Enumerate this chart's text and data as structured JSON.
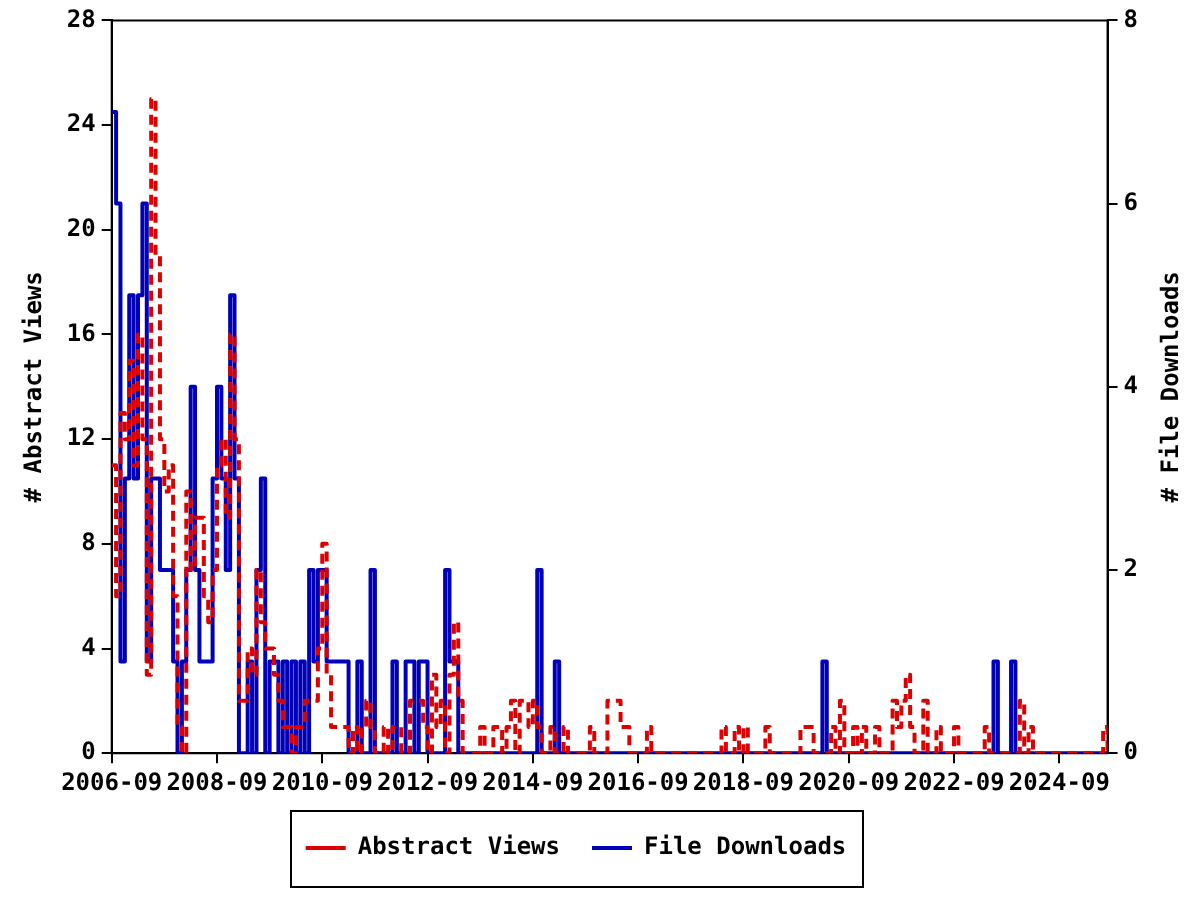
{
  "chart_data": {
    "type": "step",
    "ylabel": "# Abstract Views",
    "y2label": "# File Downloads",
    "xlim": [
      "2006-09",
      "2025-08"
    ],
    "xticks": [
      "2006-09",
      "2008-09",
      "2010-09",
      "2012-09",
      "2014-09",
      "2016-09",
      "2018-09",
      "2020-09",
      "2022-09",
      "2024-09"
    ],
    "ylim": [
      0,
      28
    ],
    "yticks": [
      0,
      4,
      8,
      12,
      16,
      20,
      24,
      28
    ],
    "y2lim": [
      0,
      8
    ],
    "y2ticks": [
      0,
      2,
      4,
      6,
      8
    ],
    "legend": "bottom",
    "series": [
      {
        "name": "Abstract Views",
        "color": "#dd0000",
        "line_style": "dashed",
        "x": [
          "2006-09",
          "2006-10",
          "2006-11",
          "2006-12",
          "2007-01",
          "2007-02",
          "2007-03",
          "2007-04",
          "2007-05",
          "2007-06",
          "2007-07",
          "2007-08",
          "2007-09",
          "2007-10",
          "2007-11",
          "2007-12",
          "2008-01",
          "2008-02",
          "2008-03",
          "2008-04",
          "2008-06",
          "2008-07",
          "2008-08",
          "2008-09",
          "2008-10",
          "2008-11",
          "2008-12",
          "2009-01",
          "2009-02",
          "2009-04",
          "2009-05",
          "2009-06",
          "2009-07",
          "2009-08",
          "2009-10",
          "2009-11",
          "2009-12",
          "2010-02",
          "2010-03",
          "2010-05",
          "2010-08",
          "2010-09",
          "2010-10",
          "2010-11",
          "2011-03",
          "2011-04",
          "2011-05",
          "2011-06",
          "2011-07",
          "2011-08",
          "2011-09",
          "2011-11",
          "2011-12",
          "2012-01",
          "2012-03",
          "2012-05",
          "2012-08",
          "2012-09",
          "2012-10",
          "2012-11",
          "2012-12",
          "2013-01",
          "2013-02",
          "2013-03",
          "2013-04",
          "2013-05",
          "2013-09",
          "2013-10",
          "2013-12",
          "2014-02",
          "2014-03",
          "2014-04",
          "2014-05",
          "2014-06",
          "2014-08",
          "2014-09",
          "2014-10",
          "2014-11",
          "2015-01",
          "2015-02",
          "2015-04",
          "2015-05",
          "2015-10",
          "2015-11",
          "2016-02",
          "2016-05",
          "2016-07",
          "2016-11",
          "2016-12",
          "2018-04",
          "2018-05",
          "2018-07",
          "2018-08",
          "2018-09",
          "2018-10",
          "2019-02",
          "2019-03",
          "2019-10",
          "2020-01",
          "2020-05",
          "2020-06",
          "2020-07",
          "2020-08",
          "2020-10",
          "2020-11",
          "2020-12",
          "2021-01",
          "2021-03",
          "2021-04",
          "2021-07",
          "2021-08",
          "2021-09",
          "2021-10",
          "2021-11",
          "2021-12",
          "2022-02",
          "2022-03",
          "2022-05",
          "2022-06",
          "2022-09",
          "2022-10",
          "2023-04",
          "2023-05",
          "2023-12",
          "2024-01",
          "2024-02",
          "2024-03",
          "2025-07",
          "2025-08"
        ],
        "values": [
          11,
          6,
          13,
          12,
          15,
          11,
          16,
          12,
          3,
          25,
          19,
          12,
          10,
          11,
          6,
          1,
          0,
          10,
          7,
          9,
          6,
          5,
          7,
          11,
          12,
          9,
          16,
          12,
          2,
          4,
          3,
          7,
          5,
          4,
          3,
          2,
          1,
          0,
          1,
          2,
          4,
          8,
          3,
          1,
          0,
          1,
          0,
          1,
          2,
          1,
          0,
          1,
          0,
          1,
          0,
          2,
          1,
          0,
          3,
          1,
          2,
          0,
          3,
          5,
          2,
          0,
          1,
          0,
          1,
          0,
          1,
          2,
          0,
          2,
          1,
          2,
          1,
          0,
          1,
          0,
          1,
          0,
          1,
          0,
          2,
          1,
          0,
          1,
          0,
          1,
          0,
          1,
          0,
          1,
          0,
          1,
          0,
          1,
          0,
          1,
          0,
          2,
          0,
          1,
          0,
          1,
          0,
          1,
          0,
          2,
          1,
          2,
          3,
          1,
          0,
          2,
          0,
          1,
          0,
          1,
          0,
          1,
          0,
          2,
          0,
          1,
          0,
          1,
          0
        ]
      },
      {
        "name": "File Downloads",
        "color": "#0000bb",
        "line_style": "solid",
        "axis": "y2",
        "x": [
          "2006-09",
          "2006-10",
          "2006-11",
          "2006-12",
          "2007-01",
          "2007-02",
          "2007-03",
          "2007-04",
          "2007-05",
          "2007-06",
          "2007-08",
          "2007-11",
          "2007-12",
          "2008-01",
          "2008-02",
          "2008-03",
          "2008-04",
          "2008-05",
          "2008-08",
          "2008-09",
          "2008-10",
          "2008-11",
          "2008-12",
          "2009-01",
          "2009-02",
          "2009-04",
          "2009-05",
          "2009-06",
          "2009-07",
          "2009-08",
          "2009-09",
          "2009-11",
          "2009-12",
          "2010-01",
          "2010-02",
          "2010-03",
          "2010-04",
          "2010-05",
          "2010-06",
          "2010-07",
          "2010-08",
          "2010-10",
          "2011-03",
          "2011-05",
          "2011-06",
          "2011-08",
          "2011-09",
          "2012-01",
          "2012-02",
          "2012-04",
          "2012-06",
          "2012-07",
          "2012-09",
          "2013-01",
          "2013-02",
          "2013-04",
          "2014-10",
          "2014-11",
          "2015-02",
          "2015-03",
          "2020-03",
          "2020-04",
          "2023-06",
          "2023-07",
          "2023-10",
          "2023-11",
          "2025-08"
        ],
        "values": [
          7,
          6,
          1,
          3,
          5,
          3,
          5,
          6,
          1,
          3,
          2,
          1,
          0,
          1,
          2,
          4,
          2,
          1,
          3,
          4,
          3,
          2,
          5,
          3,
          0,
          1,
          0,
          2,
          3,
          0,
          1,
          0,
          1,
          0,
          1,
          0,
          1,
          0,
          2,
          1,
          2,
          1,
          0,
          1,
          0,
          2,
          0,
          1,
          0,
          1,
          0,
          1,
          0,
          2,
          1,
          0,
          2,
          0,
          1,
          0,
          1,
          0,
          1,
          0,
          1,
          0,
          0
        ]
      }
    ]
  }
}
